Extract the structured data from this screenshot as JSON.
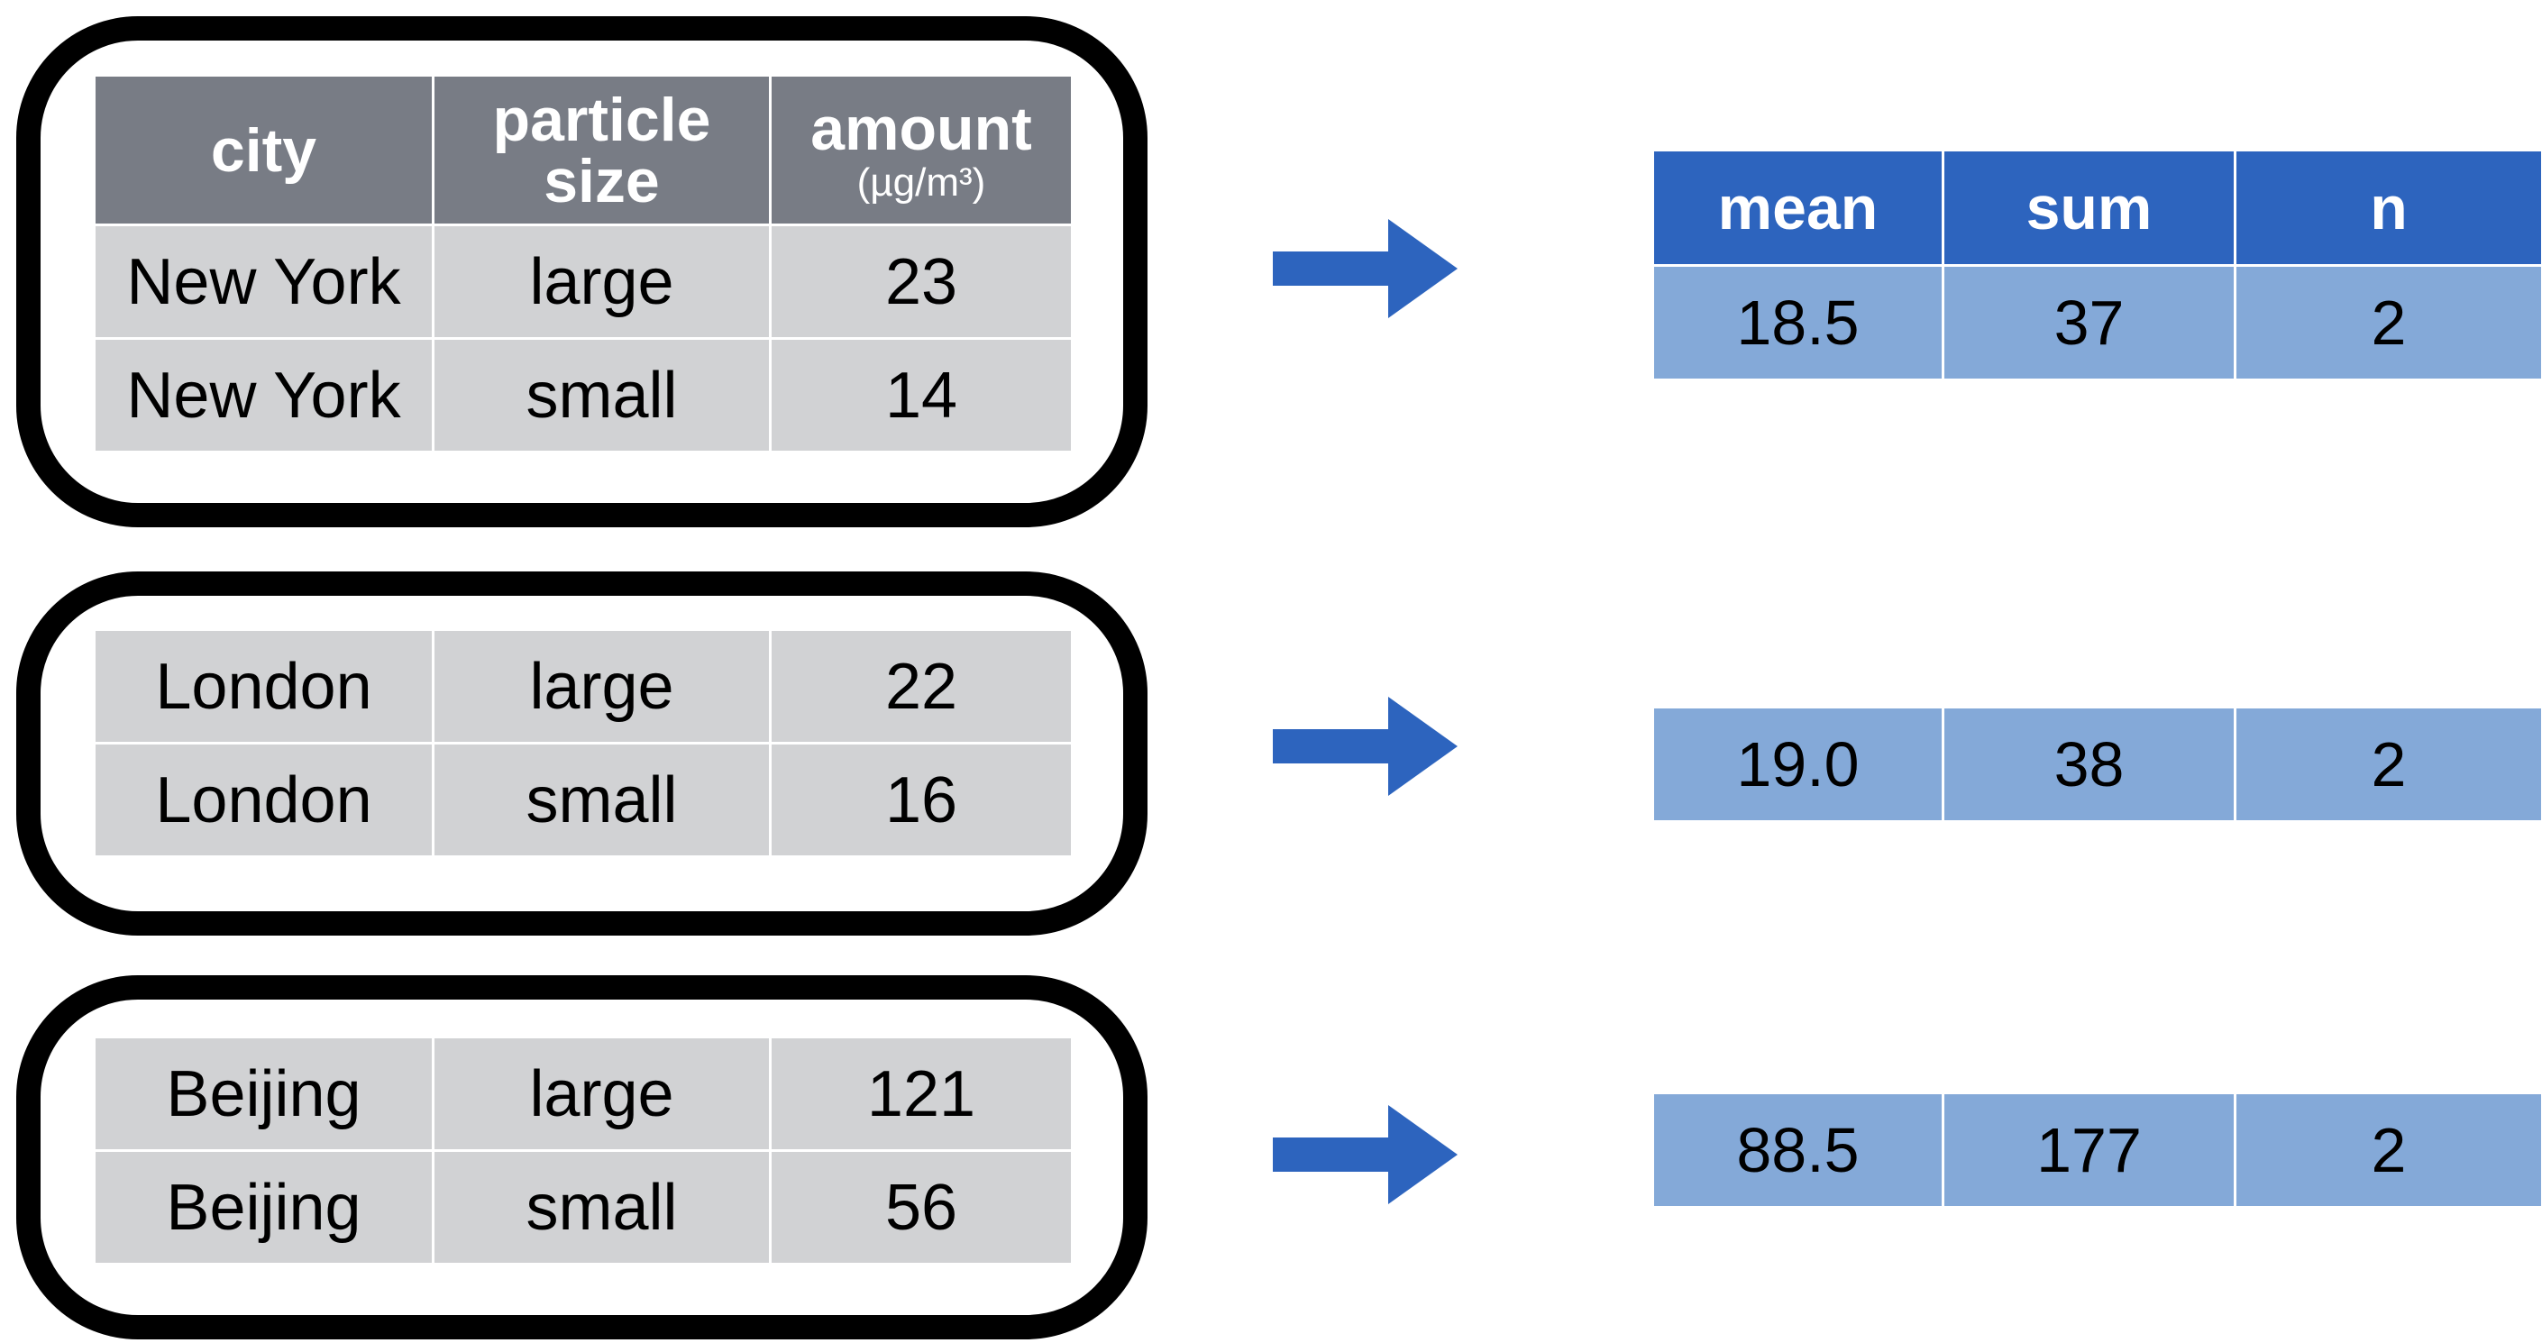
{
  "colors": {
    "group_border": "#000000",
    "input_header_bg": "#787c85",
    "input_cell_bg": "#d1d2d4",
    "output_header_bg": "#2d64be",
    "output_cell_bg": "#84a9d8",
    "arrow": "#2d64be"
  },
  "input_headers": {
    "city": "city",
    "particle_size_line1": "particle",
    "particle_size_line2": "size",
    "amount": "amount",
    "amount_unit": "(µg/m³)"
  },
  "groups": [
    {
      "rows": [
        {
          "city": "New York",
          "size": "large",
          "amount": "23"
        },
        {
          "city": "New York",
          "size": "small",
          "amount": "14"
        }
      ]
    },
    {
      "rows": [
        {
          "city": "London",
          "size": "large",
          "amount": "22"
        },
        {
          "city": "London",
          "size": "small",
          "amount": "16"
        }
      ]
    },
    {
      "rows": [
        {
          "city": "Beijing",
          "size": "large",
          "amount": "121"
        },
        {
          "city": "Beijing",
          "size": "small",
          "amount": "56"
        }
      ]
    }
  ],
  "output_headers": {
    "mean": "mean",
    "sum": "sum",
    "n": "n"
  },
  "summaries": [
    {
      "mean": "18.5",
      "sum": "37",
      "n": "2"
    },
    {
      "mean": "19.0",
      "sum": "38",
      "n": "2"
    },
    {
      "mean": "88.5",
      "sum": "177",
      "n": "2"
    }
  ],
  "icons": {
    "arrow": "right-arrow-icon"
  }
}
